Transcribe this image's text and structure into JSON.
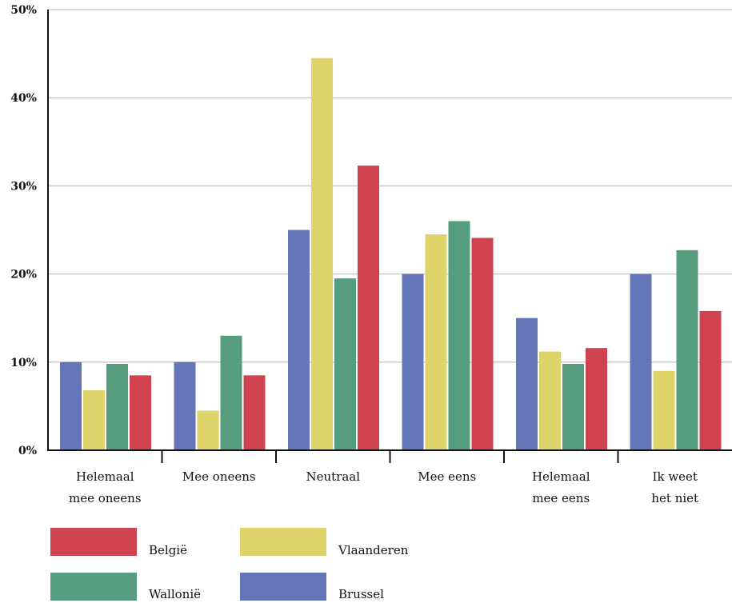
{
  "chart_data": {
    "type": "bar",
    "categories": [
      [
        "Helemaal",
        "mee oneens"
      ],
      [
        "Mee oneens"
      ],
      [
        "Neutraal"
      ],
      [
        "Mee eens"
      ],
      [
        "Helemaal",
        "mee eens"
      ],
      [
        "Ik weet",
        "het niet"
      ]
    ],
    "series": [
      {
        "name": "Brussel",
        "color": "#6476b8",
        "values": [
          10,
          10,
          25,
          20,
          15,
          20
        ]
      },
      {
        "name": "Vlaanderen",
        "color": "#ded46a",
        "values": [
          6.8,
          4.5,
          44.5,
          24.5,
          11.2,
          9
        ]
      },
      {
        "name": "Wallonië",
        "color": "#559d7e",
        "values": [
          9.8,
          13,
          19.5,
          26,
          9.8,
          22.7
        ]
      },
      {
        "name": "België",
        "color": "#cf4350",
        "values": [
          8.5,
          8.5,
          32.3,
          24.1,
          11.6,
          15.8
        ]
      }
    ],
    "ylim": [
      0,
      50
    ],
    "yticks": [
      0,
      10,
      20,
      30,
      40,
      50
    ],
    "ytick_labels": [
      "0%",
      "10%",
      "20%",
      "30%",
      "40%",
      "50%"
    ],
    "grid": true,
    "legend": {
      "placement": "bottom",
      "order": [
        "België",
        "Vlaanderen",
        "Wallonië",
        "Brussel"
      ]
    }
  }
}
